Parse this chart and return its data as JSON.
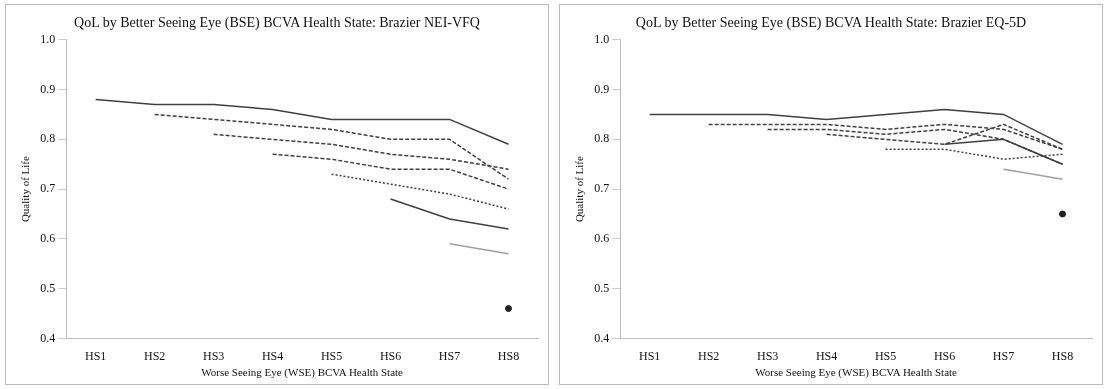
{
  "chart_data": [
    {
      "type": "line",
      "title": "QoL by Better Seeing Eye (BSE) BCVA Health State: Brazier NEI-VFQ",
      "xlabel": "Worse Seeing Eye (WSE) BCVA Health State",
      "ylabel": "Quality of Life",
      "categories": [
        "HS1",
        "HS2",
        "HS3",
        "HS4",
        "HS5",
        "HS6",
        "HS7",
        "HS8"
      ],
      "ylim": [
        0.4,
        1.0
      ],
      "yticks": [
        0.4,
        0.5,
        0.6,
        0.7,
        0.8,
        0.9,
        {
          "value": 1.0,
          "label": "1.0"
        }
      ],
      "grid": false,
      "legend": false,
      "marker": "none",
      "series": [
        {
          "color": "#404040",
          "line_style": "solid",
          "values": [
            0.88,
            0.87,
            0.87,
            0.86,
            0.84,
            0.84,
            0.84,
            0.79
          ]
        },
        {
          "color": "#404040",
          "line_style": "dashed",
          "values": [
            null,
            0.85,
            0.84,
            0.83,
            0.82,
            0.8,
            0.8,
            0.72
          ]
        },
        {
          "color": "#404040",
          "line_style": "dashed",
          "values": [
            null,
            null,
            0.81,
            0.8,
            0.79,
            0.77,
            0.76,
            0.74
          ]
        },
        {
          "color": "#404040",
          "line_style": "dashed",
          "values": [
            null,
            null,
            null,
            0.77,
            0.76,
            0.74,
            0.74,
            0.7
          ]
        },
        {
          "color": "#404040",
          "line_style": "dotted",
          "values": [
            null,
            null,
            null,
            null,
            0.73,
            0.71,
            0.69,
            0.66
          ]
        },
        {
          "color": "#404040",
          "line_style": "solid",
          "values": [
            null,
            null,
            null,
            null,
            null,
            0.68,
            0.64,
            0.62
          ]
        },
        {
          "color": "#a0a0a0",
          "line_style": "solid",
          "values": [
            null,
            null,
            null,
            null,
            null,
            null,
            0.59,
            0.57
          ]
        },
        {
          "color": "#202020",
          "type": "scatter",
          "marker": "circle",
          "values": [
            null,
            null,
            null,
            null,
            null,
            null,
            null,
            0.46
          ]
        }
      ]
    },
    {
      "type": "line",
      "title": "QoL by Better Seeing Eye (BSE) BCVA Health State: Brazier EQ-5D",
      "xlabel": "Worse Seeing Eye (WSE) BCVA Health State",
      "ylabel": "Quality of Life",
      "categories": [
        "HS1",
        "HS2",
        "HS3",
        "HS4",
        "HS5",
        "HS6",
        "HS7",
        "HS8"
      ],
      "ylim": [
        0.4,
        1.0
      ],
      "yticks": [
        0.4,
        0.5,
        0.6,
        0.7,
        0.8,
        0.9,
        {
          "value": 1.0,
          "label": "1.0"
        }
      ],
      "grid": false,
      "legend": false,
      "marker": "none",
      "series": [
        {
          "color": "#404040",
          "line_style": "solid",
          "values": [
            0.85,
            0.85,
            0.85,
            0.84,
            0.85,
            0.86,
            0.85,
            0.79
          ]
        },
        {
          "color": "#404040",
          "line_style": "dashed",
          "values": [
            null,
            0.83,
            0.83,
            0.83,
            0.82,
            0.83,
            0.82,
            0.78
          ]
        },
        {
          "color": "#404040",
          "line_style": "dashed",
          "values": [
            null,
            null,
            0.82,
            0.82,
            0.81,
            0.82,
            0.8,
            0.75
          ]
        },
        {
          "color": "#404040",
          "line_style": "dashed",
          "values": [
            null,
            null,
            null,
            0.81,
            0.8,
            0.79,
            0.83,
            0.78
          ]
        },
        {
          "color": "#404040",
          "line_style": "dotted",
          "values": [
            null,
            null,
            null,
            null,
            0.78,
            0.78,
            0.76,
            0.77
          ]
        },
        {
          "color": "#404040",
          "line_style": "solid",
          "values": [
            null,
            null,
            null,
            null,
            null,
            0.79,
            0.8,
            0.75
          ]
        },
        {
          "color": "#a0a0a0",
          "line_style": "solid",
          "values": [
            null,
            null,
            null,
            null,
            null,
            null,
            0.74,
            0.72
          ]
        },
        {
          "color": "#202020",
          "type": "scatter",
          "marker": "circle",
          "values": [
            null,
            null,
            null,
            null,
            null,
            null,
            null,
            0.65
          ]
        }
      ]
    }
  ]
}
